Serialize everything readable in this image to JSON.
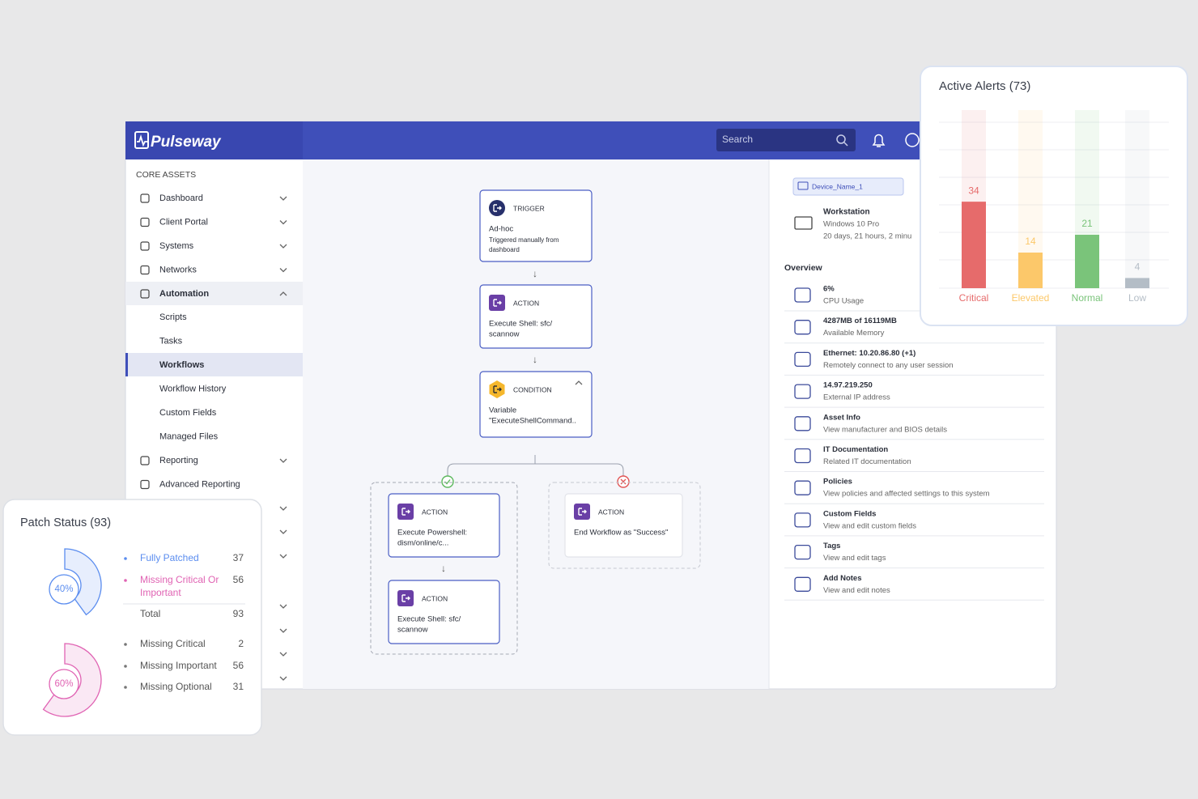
{
  "header": {
    "logo": "Pulseway",
    "search": "Search"
  },
  "sidebar": {
    "section": "CORE ASSETS",
    "top": [
      "Dashboard",
      "Client Portal",
      "Systems",
      "Networks",
      "Automation"
    ],
    "automation": [
      "Scripts",
      "Tasks",
      "Workflows",
      "Workflow History",
      "Custom Fields",
      "Managed Files"
    ],
    "more": [
      "Reporting",
      "Advanced Reporting"
    ]
  },
  "workflow": {
    "nodes": [
      {
        "kind": "TRIGGER",
        "lines": [
          "Ad-hoc",
          "Triggered manually from",
          "dashboard"
        ]
      },
      {
        "kind": "ACTION",
        "lines": [
          "Execute Shell: sfc/",
          "scannow"
        ]
      },
      {
        "kind": "CONDITION",
        "lines": [
          "Variable",
          "\"ExecuteShellCommand.."
        ]
      },
      {
        "kind": "ACTION",
        "lines": [
          "Execute Powershell:",
          "dism/online/c..."
        ]
      },
      {
        "kind": "ACTION",
        "lines": [
          "Execute Shell: sfc/",
          "scannow"
        ]
      },
      {
        "kind": "ACTION",
        "lines": [
          "End Workflow as \"Success\""
        ]
      }
    ]
  },
  "device": {
    "chip": "Device_Name_1",
    "type": "Workstation",
    "os": "Windows 10 Pro",
    "uptime": "20 days, 21 hours, 2 minu"
  },
  "overview": {
    "title": "Overview",
    "rows": [
      {
        "title": "6%",
        "subtitle": "CPU Usage"
      },
      {
        "title": "4287MB of 16119MB",
        "subtitle": "Available Memory"
      },
      {
        "title": "Ethernet: 10.20.86.80 (+1)",
        "subtitle": "Remotely connect to any user session"
      },
      {
        "title": "14.97.219.250",
        "subtitle": "External IP address"
      },
      {
        "title": "Asset Info",
        "subtitle": "View manufacturer and BIOS details"
      },
      {
        "title": "IT Documentation",
        "subtitle": "Related IT documentation"
      },
      {
        "title": "Policies",
        "subtitle": "View policies and affected settings to this system"
      },
      {
        "title": "Custom Fields",
        "subtitle": "View and edit custom fields"
      },
      {
        "title": "Tags",
        "subtitle": "View and edit tags"
      },
      {
        "title": "Add Notes",
        "subtitle": "View and edit notes"
      }
    ]
  },
  "alerts": {
    "title": "Active Alerts (73)",
    "ylim": [
      0,
      70
    ],
    "bars": [
      {
        "label": "Critical",
        "value": 34,
        "color": "#e66b6b"
      },
      {
        "label": "Elevated",
        "value": 14,
        "color": "#fcc86a"
      },
      {
        "label": "Normal",
        "value": 21,
        "color": "#7ac47a"
      },
      {
        "label": "Low",
        "value": 4,
        "color": "#b4bdc6"
      }
    ]
  },
  "patch": {
    "title": "Patch Status (93)",
    "rings": [
      {
        "value": 40,
        "label": "40%",
        "color": "#5b8def"
      },
      {
        "value": 60,
        "label": "60%",
        "color": "#e063b3"
      }
    ],
    "groups": [
      {
        "items": [
          {
            "lines": [
              "Fully Patched"
            ],
            "value": 37
          },
          {
            "lines": [
              "Missing Critical Or",
              "Important"
            ],
            "value": 56
          }
        ],
        "total": {
          "name": "Total",
          "value": 93
        }
      },
      {
        "items": [
          {
            "lines": [
              "Missing Critical"
            ],
            "value": 2
          },
          {
            "lines": [
              "Missing Important"
            ],
            "value": 56
          },
          {
            "lines": [
              "Missing Optional"
            ],
            "value": 31
          }
        ]
      }
    ]
  }
}
